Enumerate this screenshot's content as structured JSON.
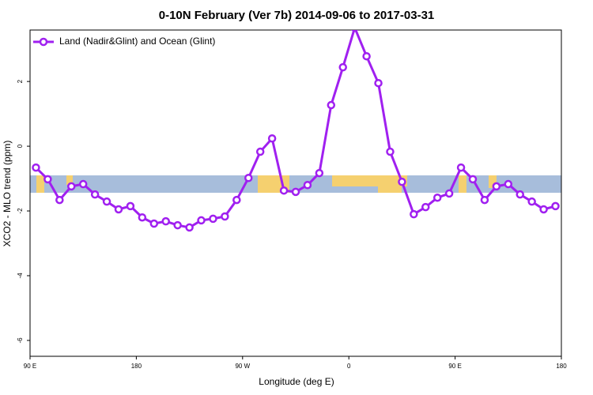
{
  "chart_data": {
    "type": "line",
    "title": "0-10N February (Ver 7b)   2014-09-06 to 2017-03-31",
    "x_label": "Longitude (deg E)",
    "y_label": "XCO2 - MLO trend (ppm)",
    "x": [
      95,
      105,
      115,
      125,
      135,
      145,
      155,
      165,
      175,
      185,
      195,
      205,
      215,
      225,
      235,
      245,
      255,
      265,
      275,
      285,
      295,
      305,
      315,
      325,
      335,
      345,
      355,
      365,
      375,
      385,
      395,
      405,
      415,
      425,
      435,
      445,
      455,
      465,
      475,
      485,
      495,
      505,
      515,
      525,
      535
    ],
    "series": [
      {
        "name": "Land (Nadir&Glint) and Ocean (Glint)",
        "color": "#a020f0",
        "values": [
          -0.66,
          -1.02,
          -1.66,
          -1.24,
          -1.17,
          -1.49,
          -1.71,
          -1.95,
          -1.85,
          -2.2,
          -2.39,
          -2.32,
          -2.44,
          -2.51,
          -2.29,
          -2.24,
          -2.17,
          -1.66,
          -0.98,
          -0.17,
          0.24,
          -1.37,
          -1.41,
          -1.2,
          -0.83,
          1.27,
          2.44,
          3.66,
          2.78,
          1.95,
          -0.17,
          -1.1,
          -2.1,
          -1.88,
          -1.59,
          -1.46,
          -0.66,
          -1.02,
          -1.66,
          -1.24,
          -1.17,
          -1.49,
          -1.71,
          -1.95,
          -1.85
        ]
      }
    ],
    "xlim": [
      90,
      540
    ],
    "xticks": [
      {
        "value": 90,
        "label": "90 E"
      },
      {
        "value": 180,
        "label": "180"
      },
      {
        "value": 270,
        "label": "90 W"
      },
      {
        "value": 360,
        "label": "0"
      },
      {
        "value": 450,
        "label": "90 E"
      },
      {
        "value": 540,
        "label": "180"
      }
    ],
    "ylim": [
      -6.49,
      3.59
    ],
    "yticks": [
      2,
      0,
      -2,
      -4,
      -6
    ],
    "legend": "top-left"
  }
}
